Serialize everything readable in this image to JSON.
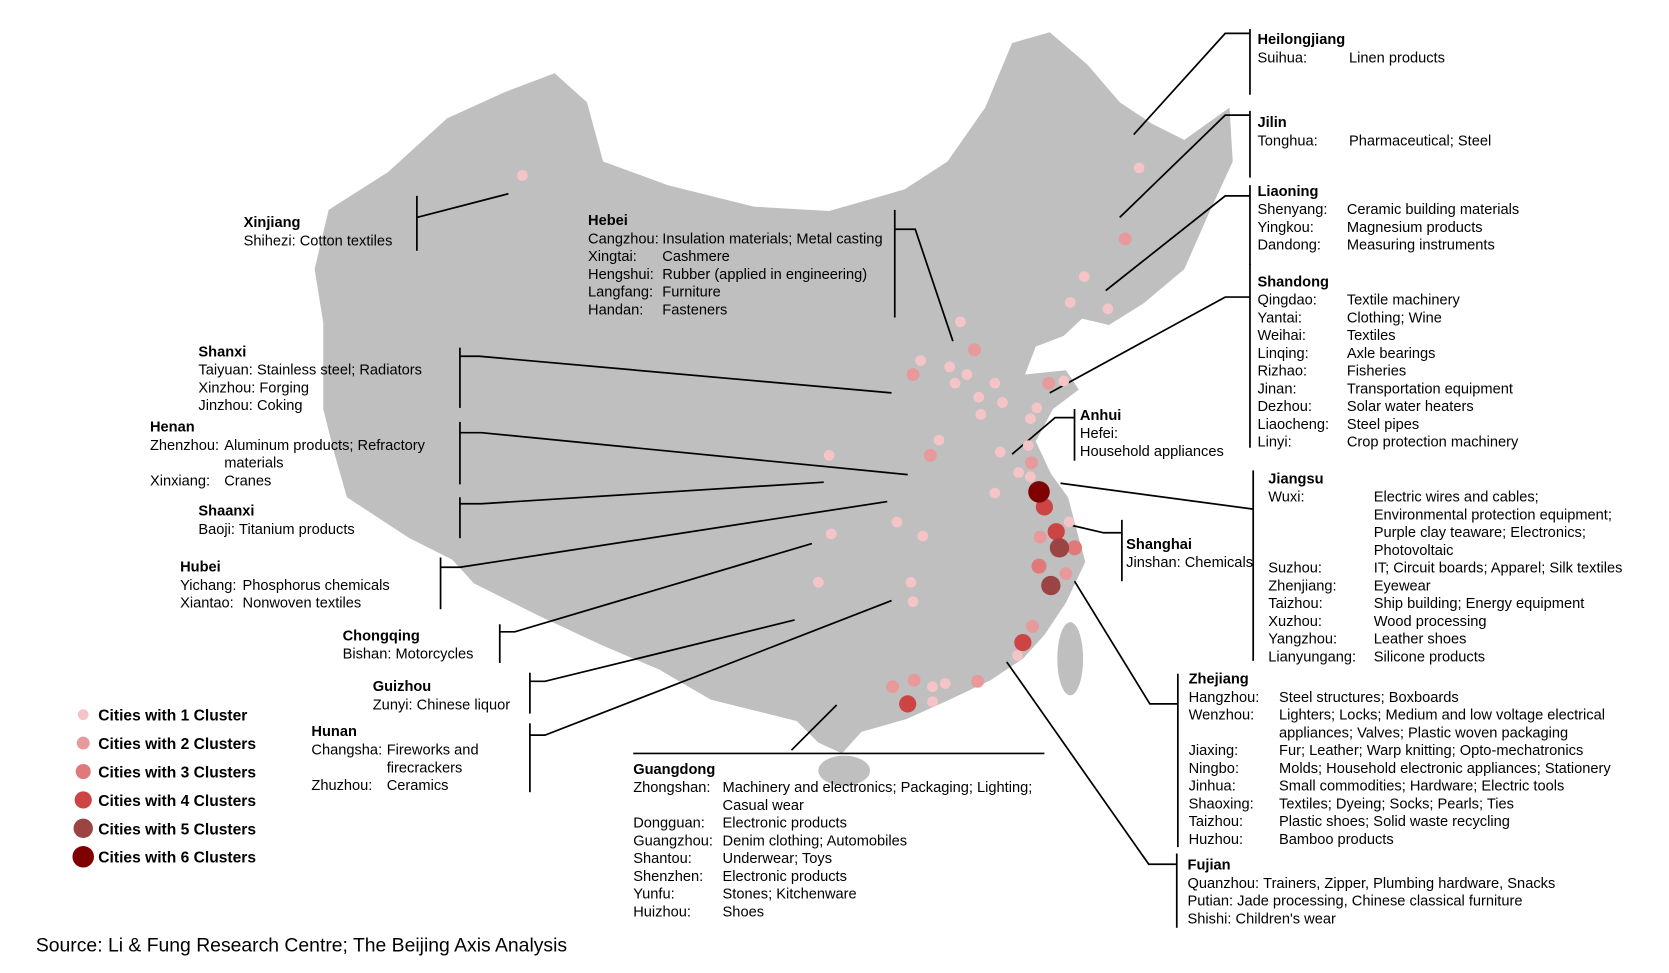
{
  "map": {
    "land_color": "#bfbfbf",
    "cluster_colors": [
      "#f4c4c6",
      "#e8999b",
      "#e07a7a",
      "#cc4444",
      "#9b4444",
      "#7f0000"
    ]
  },
  "legend": [
    {
      "label": "Cities with 1 Cluster",
      "clusters": 1
    },
    {
      "label": "Cities with 2 Clusters",
      "clusters": 2
    },
    {
      "label": "Cities with 3 Clusters",
      "clusters": 3
    },
    {
      "label": "Cities with 4 Clusters",
      "clusters": 4
    },
    {
      "label": "Cities with 5 Clusters",
      "clusters": 5
    },
    {
      "label": "Cities with 6 Clusters",
      "clusters": 6
    }
  ],
  "source": "Source: Li & Fung Research Centre; The Beijing Axis Analysis",
  "provinces": {
    "heilongjiang": {
      "name": "Heilongjiang",
      "cities": [
        {
          "city": "Suihua:",
          "products": [
            "Linen products"
          ]
        }
      ]
    },
    "jilin": {
      "name": "Jilin",
      "cities": [
        {
          "city": "Tonghua:",
          "products": [
            "Pharmaceutical; Steel"
          ]
        }
      ]
    },
    "liaoning": {
      "name": "Liaoning",
      "cities": [
        {
          "city": "Shenyang:",
          "products": [
            "Ceramic building materials"
          ]
        },
        {
          "city": "Yingkou:",
          "products": [
            "Magnesium products"
          ]
        },
        {
          "city": "Dandong:",
          "products": [
            "Measuring instruments"
          ]
        }
      ]
    },
    "shandong": {
      "name": "Shandong",
      "cities": [
        {
          "city": "Qingdao:",
          "products": [
            "Textile machinery"
          ]
        },
        {
          "city": "Yantai:",
          "products": [
            "Clothing; Wine"
          ]
        },
        {
          "city": "Weihai:",
          "products": [
            "Textiles"
          ]
        },
        {
          "city": "Linqing:",
          "products": [
            "Axle bearings"
          ]
        },
        {
          "city": "Rizhao:",
          "products": [
            "Fisheries"
          ]
        },
        {
          "city": "Jinan:",
          "products": [
            "Transportation equipment"
          ]
        },
        {
          "city": "Dezhou:",
          "products": [
            "Solar water heaters"
          ]
        },
        {
          "city": "Liaocheng:",
          "products": [
            "Steel pipes"
          ]
        },
        {
          "city": "Linyi:",
          "products": [
            "Crop protection machinery"
          ]
        }
      ]
    },
    "jiangsu": {
      "name": "Jiangsu",
      "cities": [
        {
          "city": "Wuxi:",
          "products": [
            "Electric wires and cables;",
            "Environmental protection equipment;",
            "Purple clay teaware; Electronics;",
            "Photovoltaic"
          ]
        },
        {
          "city": "Suzhou:",
          "products": [
            "IT; Circuit boards; Apparel; Silk textiles"
          ]
        },
        {
          "city": "Zhenjiang:",
          "products": [
            "Eyewear"
          ]
        },
        {
          "city": "Taizhou:",
          "products": [
            "Ship building; Energy equipment"
          ]
        },
        {
          "city": "Xuzhou:",
          "products": [
            "Wood processing"
          ]
        },
        {
          "city": "Yangzhou:",
          "products": [
            "Leather shoes"
          ]
        },
        {
          "city": "Lianyungang:",
          "products": [
            "Silicone products"
          ]
        }
      ]
    },
    "shanghai": {
      "name": "Shanghai",
      "cities": [
        {
          "city": "Jinshan:",
          "products": [
            "Chemicals"
          ]
        }
      ]
    },
    "zhejiang": {
      "name": "Zhejiang",
      "cities": [
        {
          "city": "Hangzhou:",
          "products": [
            "Steel structures; Boxboards"
          ]
        },
        {
          "city": "Wenzhou:",
          "products": [
            "Lighters; Locks; Medium and low voltage electrical",
            "appliances; Valves; Plastic woven packaging"
          ]
        },
        {
          "city": "Jiaxing:",
          "products": [
            "Fur; Leather; Warp knitting; Opto-mechatronics"
          ]
        },
        {
          "city": "Ningbo:",
          "products": [
            "Molds; Household electronic appliances; Stationery"
          ]
        },
        {
          "city": "Jinhua:",
          "products": [
            "Small commodities; Hardware; Electric tools"
          ]
        },
        {
          "city": "Shaoxing:",
          "products": [
            "Textiles; Dyeing; Socks; Pearls; Ties"
          ]
        },
        {
          "city": "Taizhou:",
          "products": [
            "Plastic shoes; Solid waste recycling"
          ]
        },
        {
          "city": "Huzhou:",
          "products": [
            "Bamboo products"
          ]
        }
      ]
    },
    "fujian": {
      "name": "Fujian",
      "cities": [
        {
          "city": "Quanzhou:",
          "products": [
            "Trainers, Zipper, Plumbing hardware, Snacks"
          ]
        },
        {
          "city": "Putian:",
          "products": [
            "Jade processing, Chinese classical furniture"
          ]
        },
        {
          "city": "Shishi:",
          "products": [
            "Children's wear"
          ]
        }
      ]
    },
    "guangdong": {
      "name": "Guangdong",
      "cities": [
        {
          "city": "Zhongshan:",
          "products": [
            "Machinery and electronics; Packaging; Lighting;",
            "Casual wear"
          ]
        },
        {
          "city": "Dongguan:",
          "products": [
            "Electronic products"
          ]
        },
        {
          "city": "Guangzhou:",
          "products": [
            "Denim clothing; Automobiles"
          ]
        },
        {
          "city": "Shantou:",
          "products": [
            "Underwear; Toys"
          ]
        },
        {
          "city": "Shenzhen:",
          "products": [
            "Electronic products"
          ]
        },
        {
          "city": "Yunfu:",
          "products": [
            "Stones; Kitchenware"
          ]
        },
        {
          "city": "Huizhou:",
          "products": [
            "Shoes"
          ]
        }
      ]
    },
    "anhui": {
      "name": "Anhui",
      "cities": [
        {
          "city": "Hefei:",
          "products": [
            "Household appliances"
          ]
        }
      ]
    },
    "hebei": {
      "name": "Hebei",
      "cities": [
        {
          "city": "Cangzhou:",
          "products": [
            "Insulation materials; Metal casting"
          ]
        },
        {
          "city": "Xingtai:",
          "products": [
            "Cashmere"
          ]
        },
        {
          "city": "Hengshui:",
          "products": [
            "Rubber (applied in engineering)"
          ]
        },
        {
          "city": "Langfang:",
          "products": [
            "Furniture"
          ]
        },
        {
          "city": "Handan:",
          "products": [
            "Fasteners"
          ]
        }
      ]
    },
    "xinjiang": {
      "name": "Xinjiang",
      "cities": [
        {
          "city": "Shihezi:",
          "products": [
            "Cotton textiles"
          ]
        }
      ]
    },
    "shanxi": {
      "name": "Shanxi",
      "cities": [
        {
          "city": "Taiyuan:",
          "products": [
            "Stainless steel; Radiators"
          ]
        },
        {
          "city": "Xinzhou:",
          "products": [
            "Forging"
          ]
        },
        {
          "city": "Jinzhou:",
          "products": [
            "Coking"
          ]
        }
      ]
    },
    "henan": {
      "name": "Henan",
      "cities": [
        {
          "city": "Zhenzhou:",
          "products": [
            "Aluminum products; Refractory",
            "materials"
          ]
        },
        {
          "city": "Xinxiang:",
          "products": [
            "Cranes"
          ]
        }
      ]
    },
    "shaanxi": {
      "name": "Shaanxi",
      "cities": [
        {
          "city": "Baoji:",
          "products": [
            "Titanium products"
          ]
        }
      ]
    },
    "hubei": {
      "name": "Hubei",
      "cities": [
        {
          "city": "Yichang:",
          "products": [
            "Phosphorus chemicals"
          ]
        },
        {
          "city": "Xiantao:",
          "products": [
            "Nonwoven textiles"
          ]
        }
      ]
    },
    "chongqing": {
      "name": "Chongqing",
      "cities": [
        {
          "city": "Bishan:",
          "products": [
            "Motorcycles"
          ]
        }
      ]
    },
    "guizhou": {
      "name": "Guizhou",
      "cities": [
        {
          "city": "Zunyi:",
          "products": [
            "Chinese liquor"
          ]
        }
      ]
    },
    "hunan": {
      "name": "Hunan",
      "cities": [
        {
          "city": "Changsha:",
          "products": [
            "Fireworks and",
            "firecrackers"
          ]
        },
        {
          "city": "Zhuzhou:",
          "products": [
            "Ceramics"
          ]
        }
      ]
    }
  }
}
